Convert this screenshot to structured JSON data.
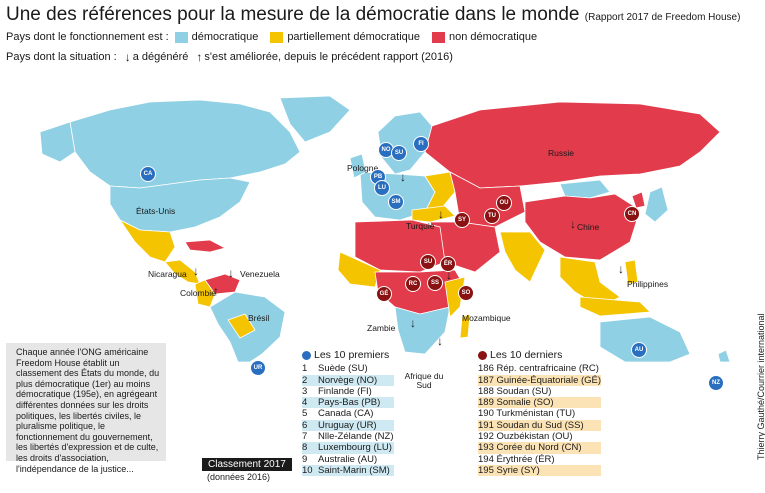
{
  "title": "Une des références pour la mesure de la démocratie dans le monde",
  "subtitle": "(Rapport 2017 de Freedom House)",
  "legend": {
    "fonctionnement_label": "Pays dont le fonctionnement est :",
    "democratique": "démocratique",
    "partiel": "partiellement démocratique",
    "non": "non démocratique",
    "situation_label": "Pays dont la situation :",
    "degenere": "a dégénéré",
    "ameliore": "s'est améliorée, depuis le précédent rapport (2016)"
  },
  "colors": {
    "democratique": "#8fd0e4",
    "partiel": "#f5c400",
    "non": "#e23b4c",
    "ocean": "#ffffff",
    "badge_top": "#2a6fbf",
    "badge_bottom": "#8a1212"
  },
  "map_labels": {
    "etats_unis": "États-Unis",
    "russie": "Russie",
    "chine": "Chine",
    "bresil": "Brésil",
    "pologne": "Pologne",
    "turquie": "Turquie",
    "venezuela": "Venezuela",
    "nicaragua": "Nicaragua",
    "colombie": "Colombie",
    "philippines": "Philippines",
    "zambie": "Zambie",
    "mozambique": "Mozambique",
    "afrique_du_sud": "Afrique du Sud"
  },
  "badges": {
    "ca": "CA",
    "no": "NO",
    "su": "SU",
    "fi": "FI",
    "pb": "PB",
    "lu": "LU",
    "sm": "SM",
    "ur": "UR",
    "au": "AU",
    "nz": "NZ",
    "sy": "SY",
    "ou": "OU",
    "tu": "TU",
    "cn": "CN",
    "sd": "SU",
    "er": "ÉR",
    "ss": "SS",
    "rc": "RC",
    "ge": "GÉ",
    "so": "SO"
  },
  "note": "Chaque année l'ONG américaine Freedom House établit un classement des États du monde, du plus démocratique (1er) au moins démocratique (195e), en agrégeant différentes données sur les droits politiques, les libertés civiles, le pluralisme politique, le fonctionnement du gouvernement, les libertés d'expression et de culte, les droits d'association, l'indépendance de la justice...",
  "top10": {
    "header": "Les 10 premiers",
    "items": [
      {
        "rank": "1",
        "name": "Suède (SU)"
      },
      {
        "rank": "2",
        "name": "Norvège (NO)"
      },
      {
        "rank": "3",
        "name": "Finlande (FI)"
      },
      {
        "rank": "4",
        "name": "Pays-Bas (PB)"
      },
      {
        "rank": "5",
        "name": "Canada (CA)"
      },
      {
        "rank": "6",
        "name": "Uruguay (UR)"
      },
      {
        "rank": "7",
        "name": "Nlle-Zélande (NZ)"
      },
      {
        "rank": "8",
        "name": "Luxembourg (LU)"
      },
      {
        "rank": "9",
        "name": "Australie (AU)"
      },
      {
        "rank": "10",
        "name": "Saint-Marin (SM)"
      }
    ]
  },
  "bottom10": {
    "header": "Les 10 derniers",
    "items": [
      {
        "rank": "186",
        "name": "Rép. centrafricaine (RC)"
      },
      {
        "rank": "187",
        "name": "Guinée-Équatoriale (GÉ)"
      },
      {
        "rank": "188",
        "name": "Soudan (SU)"
      },
      {
        "rank": "189",
        "name": "Somalie (SO)"
      },
      {
        "rank": "190",
        "name": "Turkménistan (TU)"
      },
      {
        "rank": "191",
        "name": "Soudan du Sud (SS)"
      },
      {
        "rank": "192",
        "name": "Ouzbékistan (OU)"
      },
      {
        "rank": "193",
        "name": "Corée du Nord (CN)"
      },
      {
        "rank": "194",
        "name": "Érythrée (ÉR)"
      },
      {
        "rank": "195",
        "name": "Syrie (SY)"
      }
    ]
  },
  "classement": "Classement 2017",
  "donnees": "(données 2016)",
  "credit": "Thierry Gauthé/Courrier international"
}
